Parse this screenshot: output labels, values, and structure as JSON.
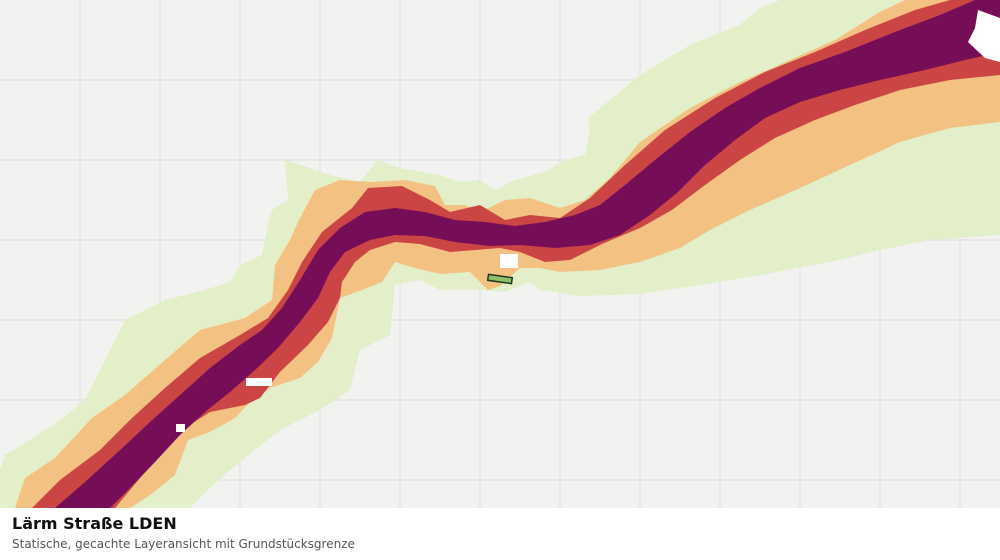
{
  "caption": {
    "title": "Lärm Straße LDEN",
    "subtitle": "Statische, gecachte Layeransicht mit Grundstücksgrenze"
  },
  "map": {
    "background_color": "#f2f2f0",
    "grid_color": "#dddddb",
    "noise_band_colors": {
      "outer": "#e2efc8",
      "band_2": "#f3c283",
      "band_3": "#cc4545",
      "core": "#760d57"
    },
    "parcel": {
      "fill_color": "#8fbf6a",
      "stroke_color": "#1f3a1f"
    }
  }
}
